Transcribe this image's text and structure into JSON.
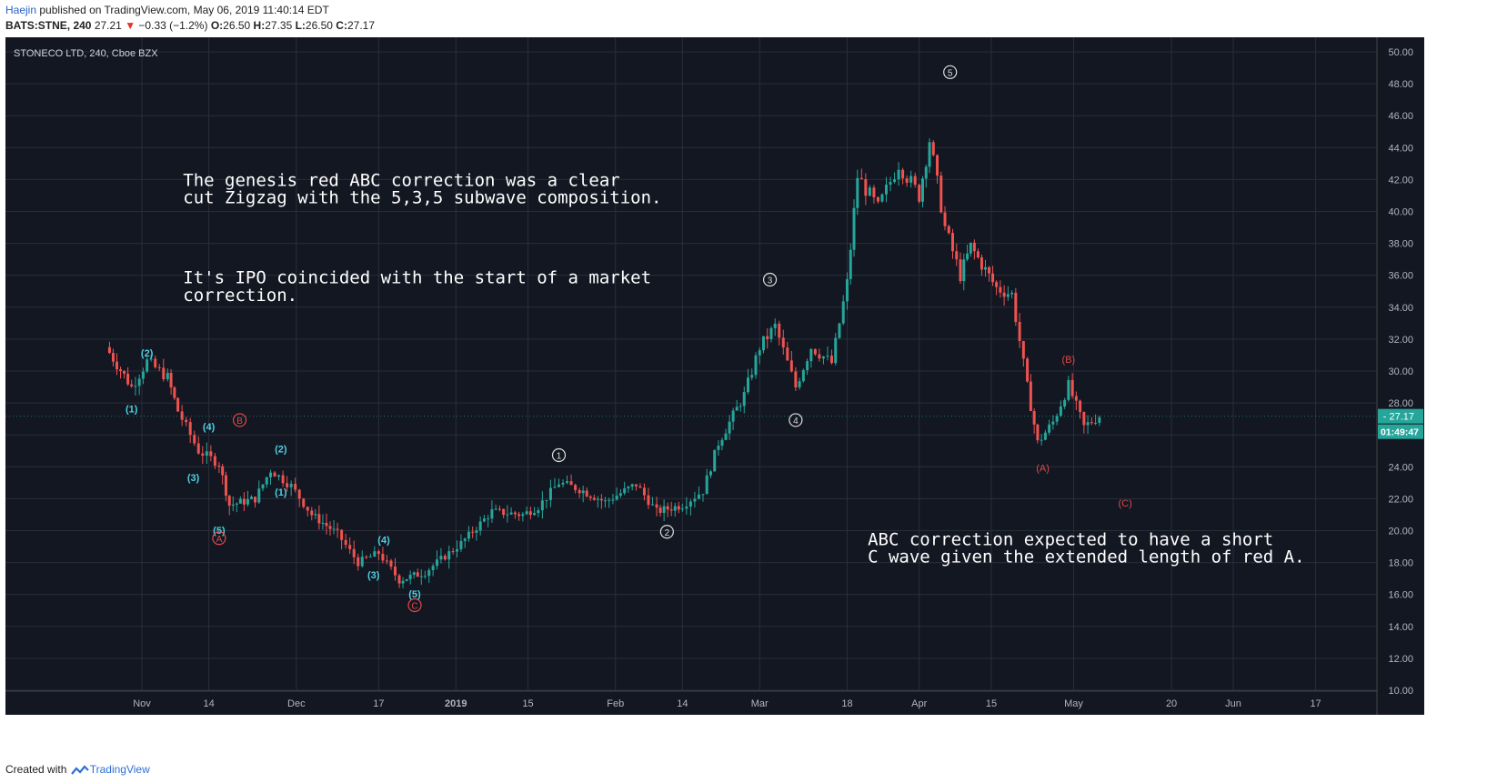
{
  "header": {
    "user": "Haejin",
    "published_text": "published on TradingView.com, May 06, 2019 11:40:14 EDT",
    "symbol_line": "BATS:STNE, 240",
    "last": "27.21",
    "change": "−0.33 (−1.2%)",
    "o_label": "O:",
    "o_val": "26.50",
    "h_label": "H:",
    "h_val": "27.35",
    "l_label": "L:",
    "l_val": "26.50",
    "c_label": "C:",
    "c_val": "27.17"
  },
  "footer": {
    "created_with": "Created with",
    "brand": "TradingView"
  },
  "colors": {
    "background": "#131722",
    "grid": "#2a2e39",
    "up": "#26a69a",
    "down": "#ef5350",
    "cyan_label": "#4dd0e1",
    "red_label": "#e04a4a",
    "white_label": "#dddddd"
  },
  "chart_data": {
    "type": "candlestick",
    "title": "STONECO LTD, 240, Cboe BZX",
    "ylim": [
      10,
      50
    ],
    "y_ticks": [
      "50.00",
      "48.00",
      "46.00",
      "44.00",
      "42.00",
      "40.00",
      "38.00",
      "36.00",
      "34.00",
      "32.00",
      "30.00",
      "28.00",
      "26.00",
      "24.00",
      "22.00",
      "20.00",
      "18.00",
      "16.00",
      "14.00",
      "12.00",
      "10.00"
    ],
    "x_ticks": [
      "Nov",
      "14",
      "Dec",
      "17",
      "2019",
      "15",
      "Feb",
      "14",
      "Mar",
      "18",
      "Apr",
      "15",
      "May",
      "20",
      "Jun",
      "17"
    ],
    "last_price_label": "27.17",
    "countdown_label": "01:49:47",
    "close_path": [
      [
        "Oct 25",
        31.5
      ],
      [
        "Oct 30",
        29.0
      ],
      [
        "Nov 2",
        30.6
      ],
      [
        "Nov 6",
        29.6
      ],
      [
        "Nov 8",
        27.5
      ],
      [
        "Nov 12",
        25.0
      ],
      [
        "Nov 16",
        24.2
      ],
      [
        "Nov 18",
        21.6
      ],
      [
        "Nov 23",
        22.0
      ],
      [
        "Nov 26",
        23.8
      ],
      [
        "Nov 30",
        22.8
      ],
      [
        "Dec 4",
        21.0
      ],
      [
        "Dec 9",
        19.8
      ],
      [
        "Dec 13",
        18.0
      ],
      [
        "Dec 17",
        18.6
      ],
      [
        "Dec 21",
        16.9
      ],
      [
        "Dec 26",
        17.4
      ],
      [
        "Jan 2",
        19.2
      ],
      [
        "Jan 8",
        21.2
      ],
      [
        "Jan 14",
        21.0
      ],
      [
        "Jan 17",
        21.5
      ],
      [
        "Jan 21",
        23.0
      ],
      [
        "Jan 25",
        22.6
      ],
      [
        "Jan 30",
        21.8
      ],
      [
        "Feb 5",
        22.9
      ],
      [
        "Feb 9",
        21.2
      ],
      [
        "Feb 14",
        21.6
      ],
      [
        "Feb 18",
        22.5
      ],
      [
        "Feb 21",
        25.5
      ],
      [
        "Feb 26",
        28.5
      ],
      [
        "Mar 1",
        31.5
      ],
      [
        "Mar 4",
        32.8
      ],
      [
        "Mar 8",
        29.0
      ],
      [
        "Mar 11",
        31.5
      ],
      [
        "Mar 15",
        30.5
      ],
      [
        "Mar 18",
        35.5
      ],
      [
        "Mar 20",
        42.2
      ],
      [
        "Mar 24",
        40.2
      ],
      [
        "Mar 28",
        43.0
      ],
      [
        "Apr 1",
        41.0
      ],
      [
        "Apr 3",
        44.5
      ],
      [
        "Apr 6",
        39.0
      ],
      [
        "Apr 9",
        36.0
      ],
      [
        "Apr 11",
        37.8
      ],
      [
        "Apr 16",
        35.2
      ],
      [
        "Apr 19",
        34.8
      ],
      [
        "Apr 22",
        29.0
      ],
      [
        "Apr 24",
        25.5
      ],
      [
        "Apr 27",
        26.8
      ],
      [
        "Apr 30",
        29.1
      ],
      [
        "May 3",
        26.5
      ],
      [
        "May 6",
        27.2
      ]
    ],
    "wave_labels": [
      {
        "text": "(2)",
        "date": "Nov 2",
        "price": 30.9,
        "color": "cyan"
      },
      {
        "text": "(1)",
        "date": "Oct 30",
        "price": 27.4,
        "color": "cyan"
      },
      {
        "text": "(4)",
        "date": "Nov 14",
        "price": 26.3,
        "color": "cyan"
      },
      {
        "text": "(3)",
        "date": "Nov 11",
        "price": 23.1,
        "color": "cyan"
      },
      {
        "text": "(5)",
        "date": "Nov 16",
        "price": 19.8,
        "color": "cyan"
      },
      {
        "text": "(2)",
        "date": "Nov 28",
        "price": 24.9,
        "color": "cyan"
      },
      {
        "text": "(1)",
        "date": "Nov 28",
        "price": 22.2,
        "color": "cyan"
      },
      {
        "text": "(4)",
        "date": "Dec 18",
        "price": 19.2,
        "color": "cyan"
      },
      {
        "text": "(3)",
        "date": "Dec 16",
        "price": 17.0,
        "color": "cyan"
      },
      {
        "text": "(5)",
        "date": "Dec 24",
        "price": 15.8,
        "color": "cyan"
      },
      {
        "text": "A",
        "date": "Nov 16",
        "price": 19.3,
        "color": "red",
        "circled": true
      },
      {
        "text": "B",
        "date": "Nov 20",
        "price": 26.7,
        "color": "red",
        "circled": true
      },
      {
        "text": "C",
        "date": "Dec 24",
        "price": 15.1,
        "color": "red",
        "circled": true
      },
      {
        "text": "1",
        "date": "Jan 21",
        "price": 24.5,
        "color": "white",
        "circled": true
      },
      {
        "text": "2",
        "date": "Feb 11",
        "price": 19.7,
        "color": "white",
        "circled": true
      },
      {
        "text": "3",
        "date": "Mar 3",
        "price": 35.5,
        "color": "white",
        "circled": true
      },
      {
        "text": "4",
        "date": "Mar 8",
        "price": 26.7,
        "color": "white",
        "circled": true
      },
      {
        "text": "5",
        "date": "Apr 7",
        "price": 48.5,
        "color": "white",
        "circled": true
      },
      {
        "text": "(A)",
        "date": "Apr 25",
        "price": 23.7,
        "color": "red"
      },
      {
        "text": "(B)",
        "date": "Apr 30",
        "price": 30.5,
        "color": "red"
      },
      {
        "text": "(C)",
        "date": "May 11",
        "price": 21.5,
        "color": "red"
      }
    ],
    "annotations": [
      {
        "text": "The genesis red ABC correction was a clear",
        "date": "Nov 9",
        "price": 41.6
      },
      {
        "text": "cut Zigzag with the 5,3,5 subwave composition.",
        "date": "Nov 9",
        "price": 40.5
      },
      {
        "text": "It's IPO coincided with the start of a market",
        "date": "Nov 9",
        "price": 35.5
      },
      {
        "text": "correction.",
        "date": "Nov 9",
        "price": 34.4
      },
      {
        "text": "ABC correction expected to have a short",
        "date": "Mar 22",
        "price": 19.1
      },
      {
        "text": "C wave given the extended length of red A.",
        "date": "Mar 22",
        "price": 18.0
      }
    ]
  }
}
